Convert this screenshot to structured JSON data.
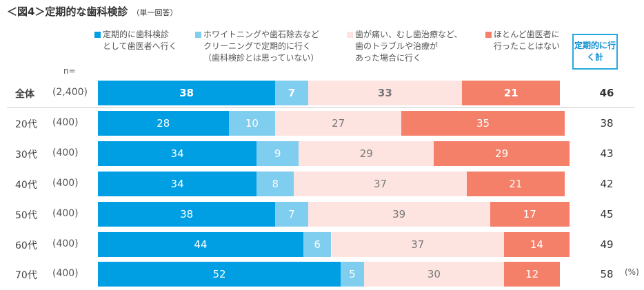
{
  "title": "＜図4＞定期的な歯科検診",
  "subtitle": "（単一回答）",
  "chart_data": {
    "type": "bar",
    "stacked": true,
    "orientation": "horizontal",
    "title": "＜図4＞定期的な歯科検診",
    "unit": "(%)",
    "n_label": "n=",
    "total_header": "定期的に行く計",
    "series": [
      {
        "name": "定期的に歯科検診として歯医者へ行く",
        "color": "#009fe3",
        "text_color": "#ffffff"
      },
      {
        "name": "ホワイトニングや歯石除去などクリーニングで定期的に行く（歯科検診とは思っていない）",
        "color": "#7fcdef",
        "text_color": "#ffffff"
      },
      {
        "name": "歯が痛い、むし歯治療など、歯のトラブルや治療があった場合に行く",
        "color": "#fde4e1",
        "text_color": "#777777"
      },
      {
        "name": "ほとんど歯医者に行ったことはない",
        "color": "#f5806a",
        "text_color": "#ffffff"
      }
    ],
    "legend_lines": [
      [
        "定期的に歯科検診",
        "として歯医者へ行く"
      ],
      [
        "ホワイトニングや歯石除去など",
        "クリーニングで定期的に行く",
        "（歯科検診とは思っていない）"
      ],
      [
        "歯が痛い、むし歯治療など、",
        "歯のトラブルや治療が",
        "あった場合に行く"
      ],
      [
        "ほとんど歯医者に",
        "行ったことはない"
      ]
    ],
    "rows": [
      {
        "label": "全体",
        "n": "(2,400)",
        "values": [
          38,
          7,
          33,
          21
        ],
        "total": 46,
        "bold": true
      },
      {
        "label": "20代",
        "n": "(400)",
        "values": [
          28,
          10,
          27,
          35
        ],
        "total": 38
      },
      {
        "label": "30代",
        "n": "(400)",
        "values": [
          34,
          9,
          29,
          29
        ],
        "total": 43
      },
      {
        "label": "40代",
        "n": "(400)",
        "values": [
          34,
          8,
          37,
          21
        ],
        "total": 42
      },
      {
        "label": "50代",
        "n": "(400)",
        "values": [
          38,
          7,
          39,
          17
        ],
        "total": 45
      },
      {
        "label": "60代",
        "n": "(400)",
        "values": [
          44,
          6,
          37,
          14
        ],
        "total": 49
      },
      {
        "label": "70代",
        "n": "(400)",
        "values": [
          52,
          5,
          30,
          12
        ],
        "total": 58
      }
    ]
  }
}
